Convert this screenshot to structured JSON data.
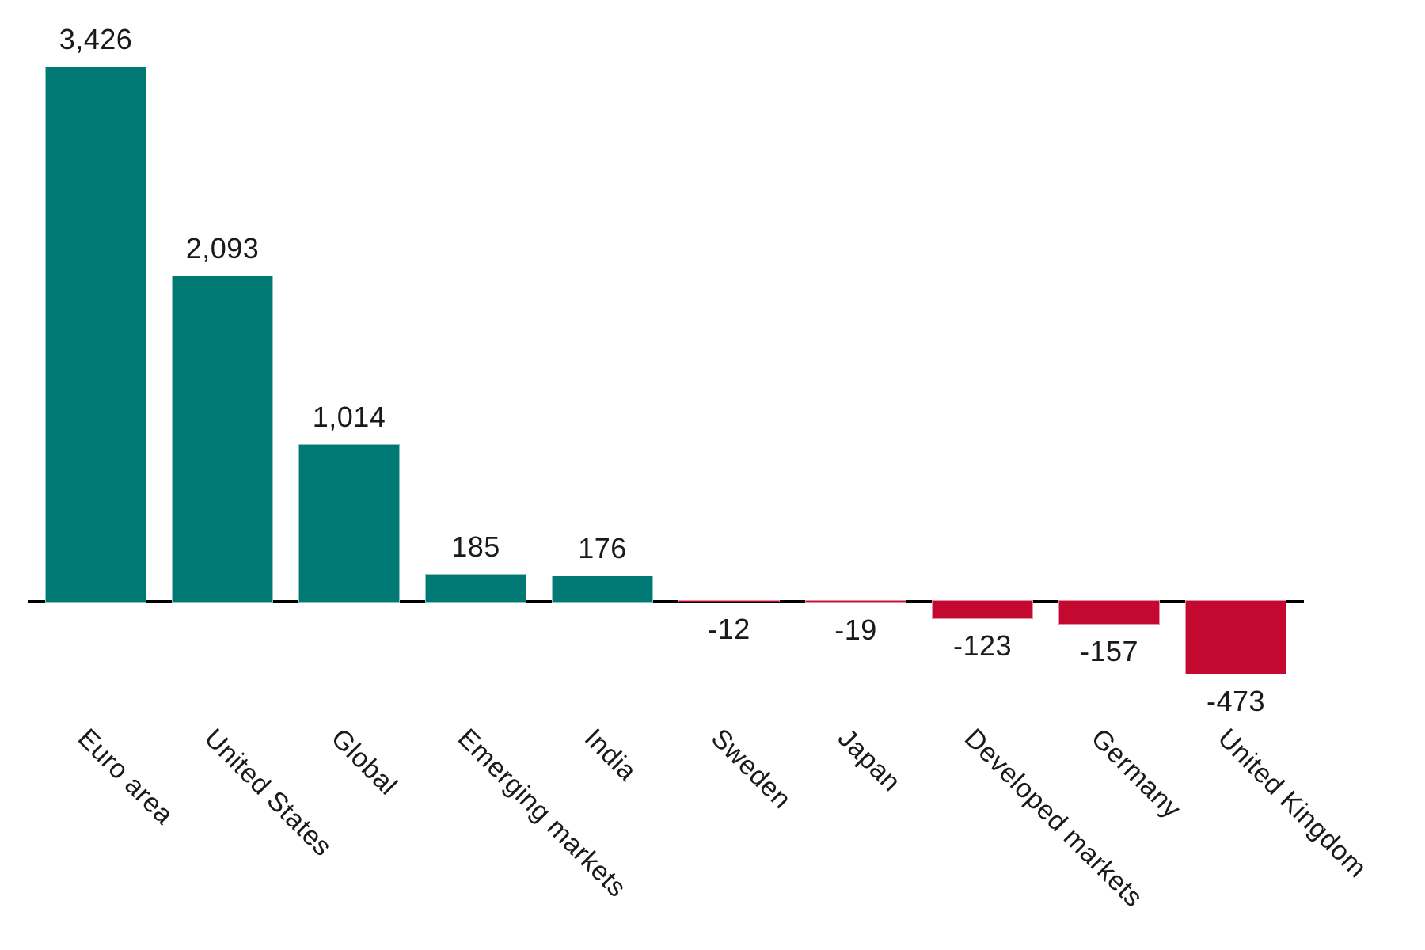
{
  "chart_data": {
    "type": "bar",
    "categories": [
      "Euro area",
      "United States",
      "Global",
      "Emerging markets",
      "India",
      "Sweden",
      "Japan",
      "Developed markets",
      "Germany",
      "United Kingdom"
    ],
    "values": [
      3426,
      2093,
      1014,
      185,
      176,
      -12,
      -19,
      -123,
      -157,
      -473
    ],
    "value_labels": [
      "3,426",
      "2,093",
      "1,014",
      "185",
      "176",
      "-12",
      "-19",
      "-123",
      "-157",
      "-473"
    ],
    "title": "",
    "xlabel": "",
    "ylabel": "",
    "ylim": [
      -600,
      3600
    ],
    "grid": false,
    "legend": "none",
    "axis": {
      "baseline_value": 0,
      "y_axis_visible": false,
      "x_baseline_visible": true,
      "tick_label_rotation_deg": -45
    },
    "colors": {
      "positive_bar": "#007873",
      "negative_bar": "#C40931",
      "axis_line": "#000000",
      "label_text": "#1A1A1A",
      "background": "#FFFFFF"
    }
  }
}
